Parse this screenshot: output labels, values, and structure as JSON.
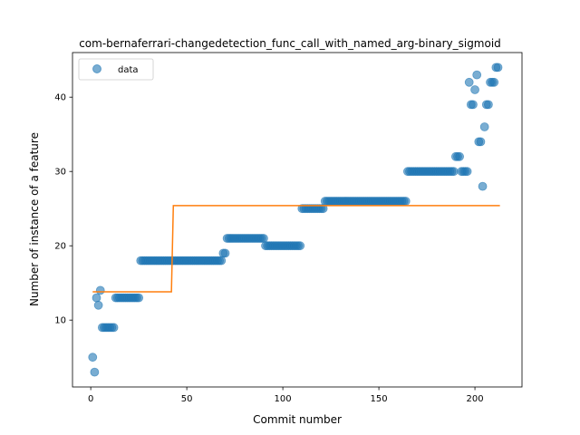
{
  "chart_data": {
    "type": "scatter",
    "title": "com-bernaferrari-changedetection_func_call_with_named_arg-binary_sigmoid",
    "xlabel": "Commit number",
    "ylabel": "Number of instance of a feature",
    "xlim": [
      -9.5,
      224.5
    ],
    "ylim": [
      1.0,
      46.0
    ],
    "xticks": [
      0,
      50,
      100,
      150,
      200
    ],
    "yticks": [
      10,
      20,
      30,
      40
    ],
    "grid": false,
    "legend_position": "upper-left",
    "colors": {
      "points": "#1f77b4",
      "fit": "#ff7f0e"
    },
    "series": [
      {
        "name": "data",
        "kind": "points",
        "points": [
          [
            1,
            5
          ],
          [
            2,
            3
          ],
          [
            3,
            13
          ],
          [
            4,
            12
          ],
          [
            5,
            14
          ],
          [
            6,
            9
          ],
          [
            7,
            9
          ],
          [
            8,
            9
          ],
          [
            9,
            9
          ],
          [
            10,
            9
          ],
          [
            11,
            9
          ],
          [
            12,
            9
          ],
          [
            13,
            13
          ],
          [
            14,
            13
          ],
          [
            15,
            13
          ],
          [
            16,
            13
          ],
          [
            17,
            13
          ],
          [
            18,
            13
          ],
          [
            19,
            13
          ],
          [
            20,
            13
          ],
          [
            21,
            13
          ],
          [
            22,
            13
          ],
          [
            23,
            13
          ],
          [
            24,
            13
          ],
          [
            25,
            13
          ],
          [
            26,
            18
          ],
          [
            27,
            18
          ],
          [
            28,
            18
          ],
          [
            29,
            18
          ],
          [
            30,
            18
          ],
          [
            31,
            18
          ],
          [
            32,
            18
          ],
          [
            33,
            18
          ],
          [
            34,
            18
          ],
          [
            35,
            18
          ],
          [
            36,
            18
          ],
          [
            37,
            18
          ],
          [
            38,
            18
          ],
          [
            39,
            18
          ],
          [
            40,
            18
          ],
          [
            41,
            18
          ],
          [
            42,
            18
          ],
          [
            43,
            18
          ],
          [
            44,
            18
          ],
          [
            45,
            18
          ],
          [
            46,
            18
          ],
          [
            47,
            18
          ],
          [
            48,
            18
          ],
          [
            49,
            18
          ],
          [
            50,
            18
          ],
          [
            51,
            18
          ],
          [
            52,
            18
          ],
          [
            53,
            18
          ],
          [
            54,
            18
          ],
          [
            55,
            18
          ],
          [
            56,
            18
          ],
          [
            57,
            18
          ],
          [
            58,
            18
          ],
          [
            59,
            18
          ],
          [
            60,
            18
          ],
          [
            61,
            18
          ],
          [
            62,
            18
          ],
          [
            63,
            18
          ],
          [
            64,
            18
          ],
          [
            65,
            18
          ],
          [
            66,
            18
          ],
          [
            67,
            18
          ],
          [
            68,
            18
          ],
          [
            69,
            19
          ],
          [
            70,
            19
          ],
          [
            71,
            21
          ],
          [
            72,
            21
          ],
          [
            73,
            21
          ],
          [
            74,
            21
          ],
          [
            75,
            21
          ],
          [
            76,
            21
          ],
          [
            77,
            21
          ],
          [
            78,
            21
          ],
          [
            79,
            21
          ],
          [
            80,
            21
          ],
          [
            81,
            21
          ],
          [
            82,
            21
          ],
          [
            83,
            21
          ],
          [
            84,
            21
          ],
          [
            85,
            21
          ],
          [
            86,
            21
          ],
          [
            87,
            21
          ],
          [
            88,
            21
          ],
          [
            89,
            21
          ],
          [
            90,
            21
          ],
          [
            91,
            20
          ],
          [
            92,
            20
          ],
          [
            93,
            20
          ],
          [
            94,
            20
          ],
          [
            95,
            20
          ],
          [
            96,
            20
          ],
          [
            97,
            20
          ],
          [
            98,
            20
          ],
          [
            99,
            20
          ],
          [
            100,
            20
          ],
          [
            101,
            20
          ],
          [
            102,
            20
          ],
          [
            103,
            20
          ],
          [
            104,
            20
          ],
          [
            105,
            20
          ],
          [
            106,
            20
          ],
          [
            107,
            20
          ],
          [
            108,
            20
          ],
          [
            109,
            20
          ],
          [
            110,
            25
          ],
          [
            111,
            25
          ],
          [
            112,
            25
          ],
          [
            113,
            25
          ],
          [
            114,
            25
          ],
          [
            115,
            25
          ],
          [
            116,
            25
          ],
          [
            117,
            25
          ],
          [
            118,
            25
          ],
          [
            119,
            25
          ],
          [
            120,
            25
          ],
          [
            121,
            25
          ],
          [
            122,
            26
          ],
          [
            123,
            26
          ],
          [
            124,
            26
          ],
          [
            125,
            26
          ],
          [
            126,
            26
          ],
          [
            127,
            26
          ],
          [
            128,
            26
          ],
          [
            129,
            26
          ],
          [
            130,
            26
          ],
          [
            131,
            26
          ],
          [
            132,
            26
          ],
          [
            133,
            26
          ],
          [
            134,
            26
          ],
          [
            135,
            26
          ],
          [
            136,
            26
          ],
          [
            137,
            26
          ],
          [
            138,
            26
          ],
          [
            139,
            26
          ],
          [
            140,
            26
          ],
          [
            141,
            26
          ],
          [
            142,
            26
          ],
          [
            143,
            26
          ],
          [
            144,
            26
          ],
          [
            145,
            26
          ],
          [
            146,
            26
          ],
          [
            147,
            26
          ],
          [
            148,
            26
          ],
          [
            149,
            26
          ],
          [
            150,
            26
          ],
          [
            151,
            26
          ],
          [
            152,
            26
          ],
          [
            153,
            26
          ],
          [
            154,
            26
          ],
          [
            155,
            26
          ],
          [
            156,
            26
          ],
          [
            157,
            26
          ],
          [
            158,
            26
          ],
          [
            159,
            26
          ],
          [
            160,
            26
          ],
          [
            161,
            26
          ],
          [
            162,
            26
          ],
          [
            163,
            26
          ],
          [
            164,
            26
          ],
          [
            165,
            30
          ],
          [
            166,
            30
          ],
          [
            167,
            30
          ],
          [
            168,
            30
          ],
          [
            169,
            30
          ],
          [
            170,
            30
          ],
          [
            171,
            30
          ],
          [
            172,
            30
          ],
          [
            173,
            30
          ],
          [
            174,
            30
          ],
          [
            175,
            30
          ],
          [
            176,
            30
          ],
          [
            177,
            30
          ],
          [
            178,
            30
          ],
          [
            179,
            30
          ],
          [
            180,
            30
          ],
          [
            181,
            30
          ],
          [
            182,
            30
          ],
          [
            183,
            30
          ],
          [
            184,
            30
          ],
          [
            185,
            30
          ],
          [
            186,
            30
          ],
          [
            187,
            30
          ],
          [
            188,
            30
          ],
          [
            189,
            30
          ],
          [
            190,
            32
          ],
          [
            191,
            32
          ],
          [
            192,
            32
          ],
          [
            193,
            30
          ],
          [
            194,
            30
          ],
          [
            195,
            30
          ],
          [
            196,
            30
          ],
          [
            197,
            42
          ],
          [
            198,
            39
          ],
          [
            199,
            39
          ],
          [
            200,
            41
          ],
          [
            201,
            43
          ],
          [
            202,
            34
          ],
          [
            203,
            34
          ],
          [
            204,
            28
          ],
          [
            205,
            36
          ],
          [
            206,
            39
          ],
          [
            207,
            39
          ],
          [
            208,
            42
          ],
          [
            209,
            42
          ],
          [
            210,
            42
          ],
          [
            211,
            44
          ],
          [
            212,
            44
          ]
        ]
      },
      {
        "kind": "line",
        "points": [
          [
            1,
            13.8
          ],
          [
            42,
            13.8
          ],
          [
            43,
            25.4
          ],
          [
            213,
            25.4
          ]
        ]
      }
    ]
  }
}
